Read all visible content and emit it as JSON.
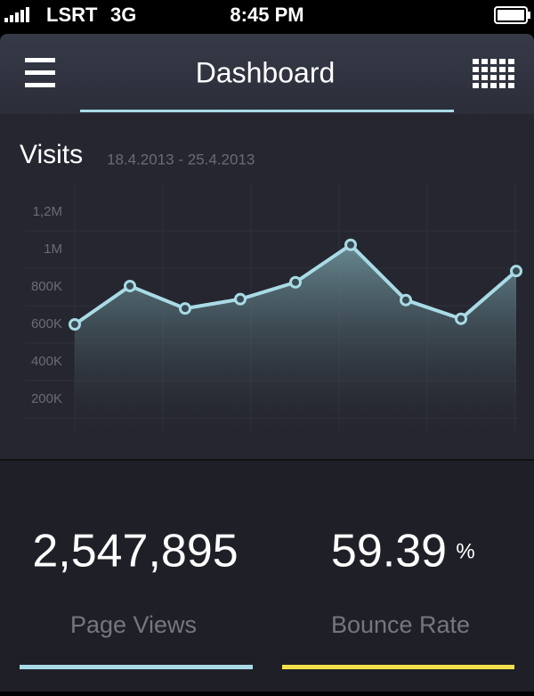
{
  "status_bar": {
    "carrier": "LSRT",
    "network": "3G",
    "time": "8:45 PM"
  },
  "nav": {
    "title": "Dashboard"
  },
  "chart_data": {
    "type": "line",
    "title": "Visits",
    "subtitle": "18.4.2013 - 25.4.2013",
    "categories": [
      null,
      null,
      null,
      null,
      null,
      null,
      null,
      null,
      null
    ],
    "values": [
      600000,
      805000,
      685000,
      735000,
      825000,
      1025000,
      730000,
      630000,
      885000
    ],
    "color": "#a8dbe6",
    "ylim": [
      0,
      1300000
    ],
    "yticks": [
      {
        "value": 200000,
        "label": "200K"
      },
      {
        "value": 400000,
        "label": "400K"
      },
      {
        "value": 600000,
        "label": "600K"
      },
      {
        "value": 800000,
        "label": "800K"
      },
      {
        "value": 1000000,
        "label": "1M"
      },
      {
        "value": 1200000,
        "label": "1,2M"
      }
    ],
    "grid": true
  },
  "stats": [
    {
      "value": "2,547,895",
      "label": "Page Views",
      "color": "#a8dbe6"
    },
    {
      "value": "59.39",
      "unit": "%",
      "label": "Bounce Rate",
      "color": "#f2e04a"
    }
  ]
}
